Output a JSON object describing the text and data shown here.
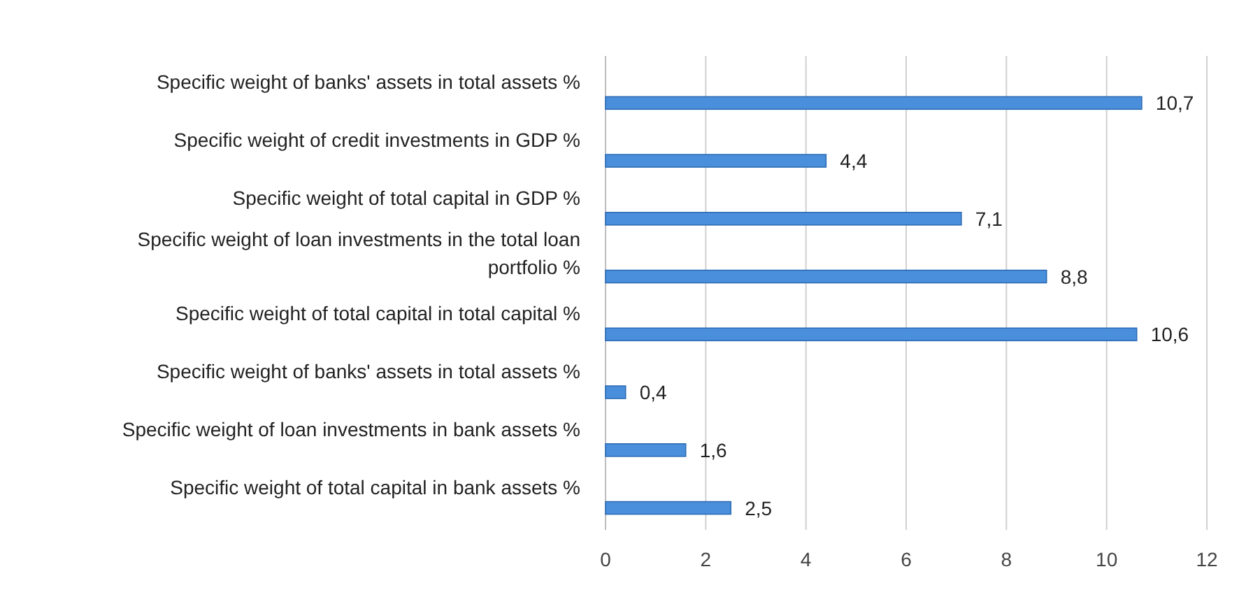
{
  "chart_data": {
    "type": "bar",
    "orientation": "horizontal",
    "categories": [
      "Specific weight of banks' assets in total assets %",
      "Specific weight of credit investments in GDP %",
      "Specific weight of total capital in GDP %",
      "Specific weight of loan investments in the total loan portfolio %",
      "Specific weight of total capital in total capital %",
      "Specific weight of banks' assets in total assets %",
      "Specific weight of loan investments in bank assets %",
      "Specific weight of total capital in bank assets %"
    ],
    "values": [
      10.7,
      4.4,
      7.1,
      8.8,
      10.6,
      0.4,
      1.6,
      2.5
    ],
    "value_labels": [
      "10,7",
      "4,4",
      "7,1",
      "8,8",
      "10,6",
      "0,4",
      "1,6",
      "2,5"
    ],
    "color": "#4a8fdb",
    "xlim": [
      0,
      12
    ],
    "xticks": [
      0,
      2,
      4,
      6,
      8,
      10,
      12
    ],
    "grid": "x"
  }
}
